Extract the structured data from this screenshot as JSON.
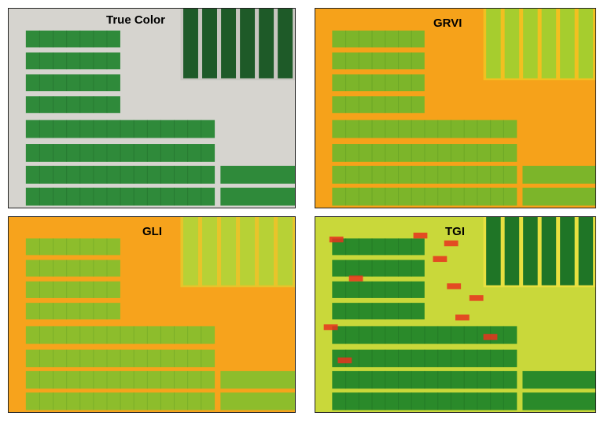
{
  "panels": [
    {
      "label": "True Color",
      "colors": {
        "bg": "#d6d4cf",
        "plot": "#2f8a3a",
        "plot_dark": "#1f6a2a",
        "upper_plot": "#1e5a28",
        "gap": "#c8c6c0"
      }
    },
    {
      "label": "GRVI",
      "colors": {
        "bg": "#f6a21a",
        "plot": "#7cb52a",
        "plot_dark": "#5d9a22",
        "upper_plot": "#a6cd2e",
        "gap": "#f2c020"
      }
    },
    {
      "label": "GLI",
      "colors": {
        "bg": "#f7a31c",
        "plot": "#8dbd2c",
        "plot_dark": "#6aa226",
        "upper_plot": "#b7d136",
        "gap": "#e8c42a"
      }
    },
    {
      "label": "TGI",
      "colors": {
        "bg": "#c9d83a",
        "plot": "#2a8a2a",
        "plot_dark": "#1d6d22",
        "upper_plot": "#1f7526",
        "gap": "#e8e040",
        "accent": "#e8321e"
      }
    }
  ]
}
